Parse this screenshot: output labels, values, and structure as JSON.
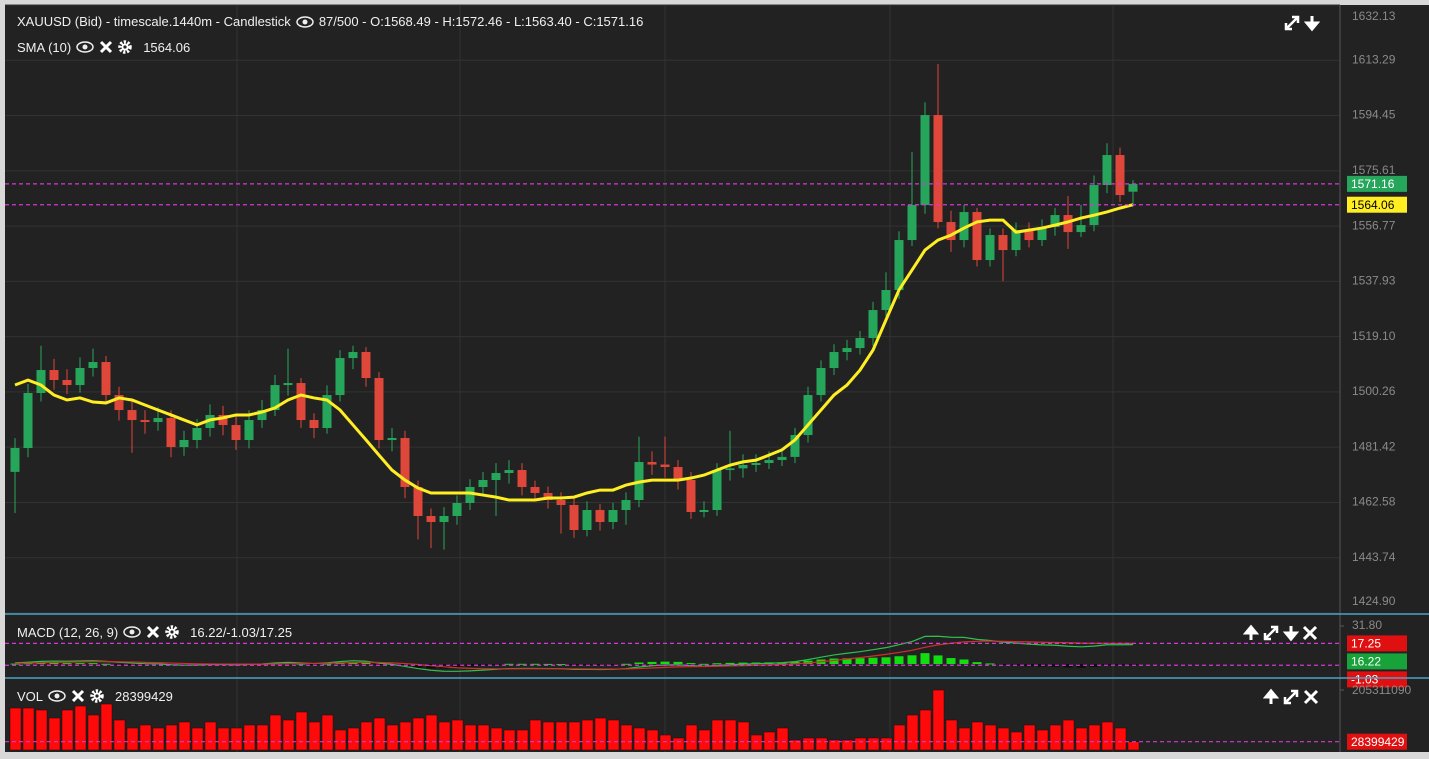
{
  "chart_data": [
    {
      "type": "candlestick",
      "title": "XAUUSD (Bid) - timescale.1440m - Candlestick",
      "subtitle": "87/500 - O:1568.49 - H:1572.46 - L:1563.40 - C:1571.16",
      "open": [
        1473.0,
        1481.13,
        1499.88,
        1507.71,
        1504.31,
        1502.6,
        1508.4,
        1510.44,
        1499.19,
        1494.08,
        1490.67,
        1489.99,
        1491.36,
        1481.47,
        1483.86,
        1487.95,
        1492.38,
        1488.97,
        1483.86,
        1490.67,
        1494.08,
        1502.6,
        1503.28,
        1490.67,
        1487.95,
        1499.19,
        1511.8,
        1513.85,
        1504.99,
        1483.86,
        1484.54,
        1467.84,
        1457.96,
        1455.91,
        1457.96,
        1462.39,
        1467.84,
        1470.23,
        1472.61,
        1473.63,
        1467.84,
        1465.8,
        1463.41,
        1461.71,
        1453.19,
        1460.0,
        1455.91,
        1460.0,
        1463.41,
        1476.36,
        1475.5,
        1474.66,
        1470.23,
        1459.32,
        1460.0,
        1473.63,
        1474.2,
        1475.34,
        1476.02,
        1477.04,
        1478.1,
        1485.56,
        1499.19,
        1508.4,
        1513.85,
        1515.21,
        1518.62,
        1528.16,
        1534.98,
        1552.02,
        1563.95,
        1594.62,
        1558.15,
        1552.02,
        1561.56,
        1545.2,
        1553.72,
        1548.61,
        1555.43,
        1552.02,
        1556.45,
        1560.54,
        1554.74,
        1557.13,
        1570.76,
        1580.99,
        1568.49
      ],
      "high": [
        1484.5,
        1503,
        1516,
        1511.5,
        1508,
        1512,
        1515,
        1512.5,
        1502,
        1497,
        1494,
        1495,
        1494,
        1487,
        1491,
        1496,
        1495.5,
        1492,
        1494,
        1497.5,
        1506,
        1515,
        1505,
        1493,
        1502.5,
        1514.5,
        1516,
        1515.5,
        1507,
        1488,
        1487,
        1470,
        1460.5,
        1461,
        1465,
        1470.5,
        1473,
        1476,
        1477,
        1476,
        1470,
        1468,
        1466,
        1464,
        1463,
        1462,
        1462.5,
        1466,
        1485,
        1480,
        1485,
        1477,
        1473,
        1463,
        1476,
        1487,
        1479,
        1479,
        1480,
        1481,
        1488,
        1502,
        1511,
        1516.5,
        1518,
        1521,
        1531,
        1541,
        1555,
        1582,
        1599,
        1612,
        1562,
        1564,
        1563,
        1556,
        1556,
        1558,
        1558,
        1559,
        1563,
        1567,
        1564,
        1574,
        1585,
        1583.5,
        1572.46
      ],
      "low": [
        1459,
        1478,
        1497,
        1501,
        1499.5,
        1500,
        1505.5,
        1496,
        1490.5,
        1479.5,
        1486,
        1487,
        1478,
        1478.5,
        1481,
        1485,
        1485.5,
        1480.5,
        1481,
        1488,
        1492,
        1499,
        1488,
        1484.5,
        1486,
        1497,
        1508,
        1502,
        1481,
        1480,
        1464,
        1450,
        1447,
        1446.5,
        1455,
        1460,
        1465,
        1458,
        1469,
        1465,
        1463,
        1460.5,
        1452,
        1450.5,
        1451,
        1453,
        1453.5,
        1455,
        1461,
        1472,
        1471,
        1467,
        1457,
        1457.5,
        1458,
        1470,
        1471,
        1473,
        1474,
        1475,
        1476,
        1483,
        1497,
        1506,
        1511,
        1513,
        1516,
        1526,
        1532,
        1550,
        1561,
        1556,
        1548,
        1549.5,
        1543,
        1543,
        1538,
        1546.5,
        1549.5,
        1550,
        1553.5,
        1549,
        1553,
        1555,
        1568,
        1565,
        1563.4
      ],
      "close": [
        1481.13,
        1499.88,
        1507.71,
        1504.31,
        1502.6,
        1508.4,
        1510.44,
        1499.19,
        1494.08,
        1490.67,
        1489.99,
        1491.36,
        1481.47,
        1483.86,
        1487.95,
        1492.38,
        1488.97,
        1483.86,
        1490.67,
        1494.08,
        1502.6,
        1503.28,
        1490.67,
        1487.95,
        1499.19,
        1511.8,
        1513.85,
        1504.99,
        1483.86,
        1484.54,
        1467.84,
        1457.96,
        1455.91,
        1457.96,
        1462.39,
        1467.84,
        1470.23,
        1472.61,
        1473.63,
        1467.84,
        1465.8,
        1463.41,
        1461.71,
        1453.19,
        1460.0,
        1455.91,
        1460.0,
        1463.41,
        1476.36,
        1475.5,
        1474.66,
        1470.23,
        1459.32,
        1460.0,
        1473.63,
        1474.2,
        1475.34,
        1476.02,
        1477.04,
        1478.1,
        1485.56,
        1499.19,
        1508.4,
        1513.85,
        1515.21,
        1518.62,
        1528.16,
        1534.98,
        1552.02,
        1563.95,
        1594.62,
        1558.15,
        1552.02,
        1561.56,
        1545.2,
        1553.72,
        1548.61,
        1555.43,
        1552.02,
        1556.45,
        1560.54,
        1554.74,
        1557.13,
        1570.76,
        1580.99,
        1567.35,
        1571.16
      ],
      "up_color": "#26a65b",
      "down_color": "#e0473b",
      "overlay": {
        "name": "SMA (10)",
        "color": "#ffee22",
        "values": [
          1502.6,
          1504.3,
          1502.6,
          1499.2,
          1497.5,
          1498.2,
          1496.8,
          1496.5,
          1498.2,
          1497.5,
          1495.8,
          1494.1,
          1492.4,
          1490.7,
          1489.0,
          1490.7,
          1491.4,
          1492.4,
          1492.4,
          1493.4,
          1494.8,
          1497.5,
          1499.2,
          1498.2,
          1497.5,
          1494.1,
          1489.0,
          1483.9,
          1478.7,
          1473.6,
          1470.2,
          1467.5,
          1465.8,
          1465.8,
          1465.8,
          1465.8,
          1465.1,
          1464.4,
          1463.4,
          1463.4,
          1463.4,
          1464.1,
          1464.1,
          1464.4,
          1465.8,
          1466.8,
          1466.8,
          1468.5,
          1469.5,
          1470.2,
          1470.2,
          1470.2,
          1470.9,
          1471.9,
          1473.6,
          1475.3,
          1476.4,
          1477.0,
          1478.7,
          1480.5,
          1483.9,
          1489.0,
          1494.1,
          1499.2,
          1502.6,
          1507.7,
          1514.5,
          1524.8,
          1535.0,
          1541.8,
          1548.6,
          1552.0,
          1553.7,
          1556.1,
          1558.2,
          1558.8,
          1558.8,
          1554.7,
          1555.4,
          1556.1,
          1557.1,
          1558.2,
          1559.5,
          1560.5,
          1561.6,
          1562.9,
          1564.06
        ]
      },
      "ylim": [
        1424.9,
        1632.13
      ],
      "yticks": [
        1632.13,
        1613.29,
        1594.45,
        1575.61,
        1556.77,
        1537.93,
        {
          "value": 1519.1,
          "label": "1519.10"
        },
        1500.26,
        1481.42,
        1462.58,
        1443.74,
        {
          "value": 1424.9,
          "label": "1424.90"
        }
      ],
      "grid": true
    },
    {
      "type": "macd",
      "title": "MACD (12, 26, 9)",
      "subtitle": "16.22/-1.03/17.25",
      "macd": {
        "color": "#2fbf4f",
        "values": [
          1.0,
          1.5,
          2.2,
          2.5,
          2.4,
          2.6,
          2.8,
          2.2,
          1.5,
          0.8,
          0.3,
          0.1,
          -0.6,
          -0.9,
          -0.8,
          -0.4,
          -0.4,
          -0.7,
          -0.3,
          0.1,
          0.9,
          1.4,
          0.9,
          0.4,
          1.0,
          2.0,
          2.8,
          2.4,
          0.7,
          -0.3,
          -2.0,
          -3.8,
          -5.2,
          -6.0,
          -6.1,
          -5.7,
          -5.1,
          -4.4,
          -3.8,
          -3.7,
          -3.7,
          -3.8,
          -3.9,
          -4.5,
          -4.4,
          -4.6,
          -4.4,
          -3.9,
          -2.5,
          -1.5,
          -0.8,
          -0.6,
          -1.4,
          -1.9,
          -1.2,
          -0.6,
          -0.1,
          0.3,
          0.7,
          1.1,
          2.0,
          3.7,
          5.7,
          7.6,
          9.0,
          10.3,
          12.0,
          13.7,
          16.2,
          18.8,
          23.1,
          23.2,
          22.4,
          22.3,
          20.6,
          19.7,
          18.3,
          17.6,
          16.6,
          16.0,
          15.7,
          14.9,
          14.4,
          15.0,
          16.1,
          16.1,
          16.22
        ]
      },
      "signal": {
        "color": "#d0302a",
        "values": [
          0.6,
          0.8,
          1.1,
          1.4,
          1.6,
          1.8,
          2.0,
          2.0,
          1.9,
          1.7,
          1.4,
          1.1,
          0.8,
          0.5,
          0.2,
          0.1,
          0.0,
          -0.1,
          -0.1,
          -0.1,
          0.1,
          0.4,
          0.5,
          0.5,
          0.6,
          0.9,
          1.3,
          1.5,
          1.3,
          1.0,
          0.4,
          -0.4,
          -1.4,
          -2.3,
          -3.1,
          -3.6,
          -3.9,
          -4.0,
          -4.0,
          -3.9,
          -3.9,
          -3.9,
          -3.9,
          -4.0,
          -4.1,
          -4.2,
          -4.2,
          -4.1,
          -3.8,
          -3.3,
          -2.8,
          -2.4,
          -2.2,
          -2.1,
          -1.9,
          -1.6,
          -1.3,
          -1.0,
          -0.7,
          -0.3,
          0.2,
          0.9,
          1.9,
          3.0,
          4.2,
          5.4,
          6.7,
          8.1,
          9.7,
          11.5,
          14.0,
          16.0,
          17.4,
          18.5,
          19.0,
          19.2,
          19.0,
          18.8,
          18.5,
          18.2,
          18.0,
          17.8,
          17.5,
          17.4,
          17.3,
          17.3,
          17.25
        ]
      },
      "histogram": {
        "up_color": "#11dd11",
        "down_color": "#0d0d0d",
        "values": [
          0.4,
          0.7,
          1.1,
          1.1,
          0.8,
          0.8,
          0.8,
          0.2,
          -0.4,
          -0.9,
          -1.1,
          -1.0,
          -1.4,
          -1.4,
          -1.0,
          -0.5,
          -0.4,
          -0.6,
          -0.2,
          0.2,
          0.8,
          1.0,
          0.4,
          -0.1,
          0.4,
          1.1,
          1.5,
          0.9,
          -0.6,
          -1.3,
          -2.4,
          -3.4,
          -3.8,
          -3.7,
          -3.0,
          -2.1,
          -1.2,
          -0.4,
          0.2,
          0.2,
          0.2,
          0.1,
          0.0,
          -0.5,
          -0.3,
          -0.4,
          -0.2,
          0.2,
          1.3,
          1.8,
          2.0,
          1.8,
          0.8,
          0.2,
          0.7,
          1.0,
          1.2,
          1.3,
          1.4,
          1.4,
          1.8,
          2.8,
          3.8,
          4.6,
          4.8,
          4.9,
          5.3,
          5.6,
          6.5,
          7.3,
          9.1,
          7.2,
          5.0,
          3.8,
          1.6,
          0.5,
          -0.7,
          -1.2,
          -1.9,
          -2.2,
          -2.3,
          -2.9,
          -3.1,
          -2.4,
          -1.2,
          -1.2,
          -1.03
        ]
      },
      "ylim": [
        -10,
        31.8
      ],
      "yticks": [
        {
          "value": 31.8,
          "label": "31.80"
        }
      ]
    },
    {
      "type": "volume",
      "title": "VOL",
      "color": "#ff0a0a",
      "values": [
        143640000,
        143640000,
        136800000,
        109440000,
        136800000,
        150480000,
        119700000,
        157320000,
        102600000,
        75240000,
        85500000,
        75240000,
        85500000,
        95760000,
        75240000,
        95760000,
        75240000,
        75240000,
        85500000,
        85500000,
        119700000,
        102600000,
        129960000,
        95760000,
        119700000,
        68400000,
        75240000,
        95760000,
        109440000,
        85500000,
        95760000,
        109440000,
        119700000,
        95760000,
        102600000,
        85500000,
        85500000,
        75240000,
        68400000,
        68400000,
        102600000,
        95760000,
        95760000,
        95760000,
        102600000,
        109440000,
        102600000,
        85500000,
        75240000,
        68400000,
        51300000,
        41040000,
        85500000,
        68400000,
        102600000,
        102600000,
        95760000,
        51300000,
        61560000,
        75240000,
        34200000,
        41040000,
        41040000,
        34200000,
        34200000,
        41040000,
        41040000,
        41040000,
        85500000,
        119700000,
        136800000,
        205200000,
        102600000,
        75240000,
        95760000,
        85500000,
        75240000,
        61560000,
        85500000,
        68400000,
        85500000,
        102600000,
        75240000,
        85500000,
        95760000,
        75240000,
        28399429
      ],
      "ylim": [
        0,
        205311090
      ],
      "yticks": [
        205311090
      ]
    }
  ]
}
